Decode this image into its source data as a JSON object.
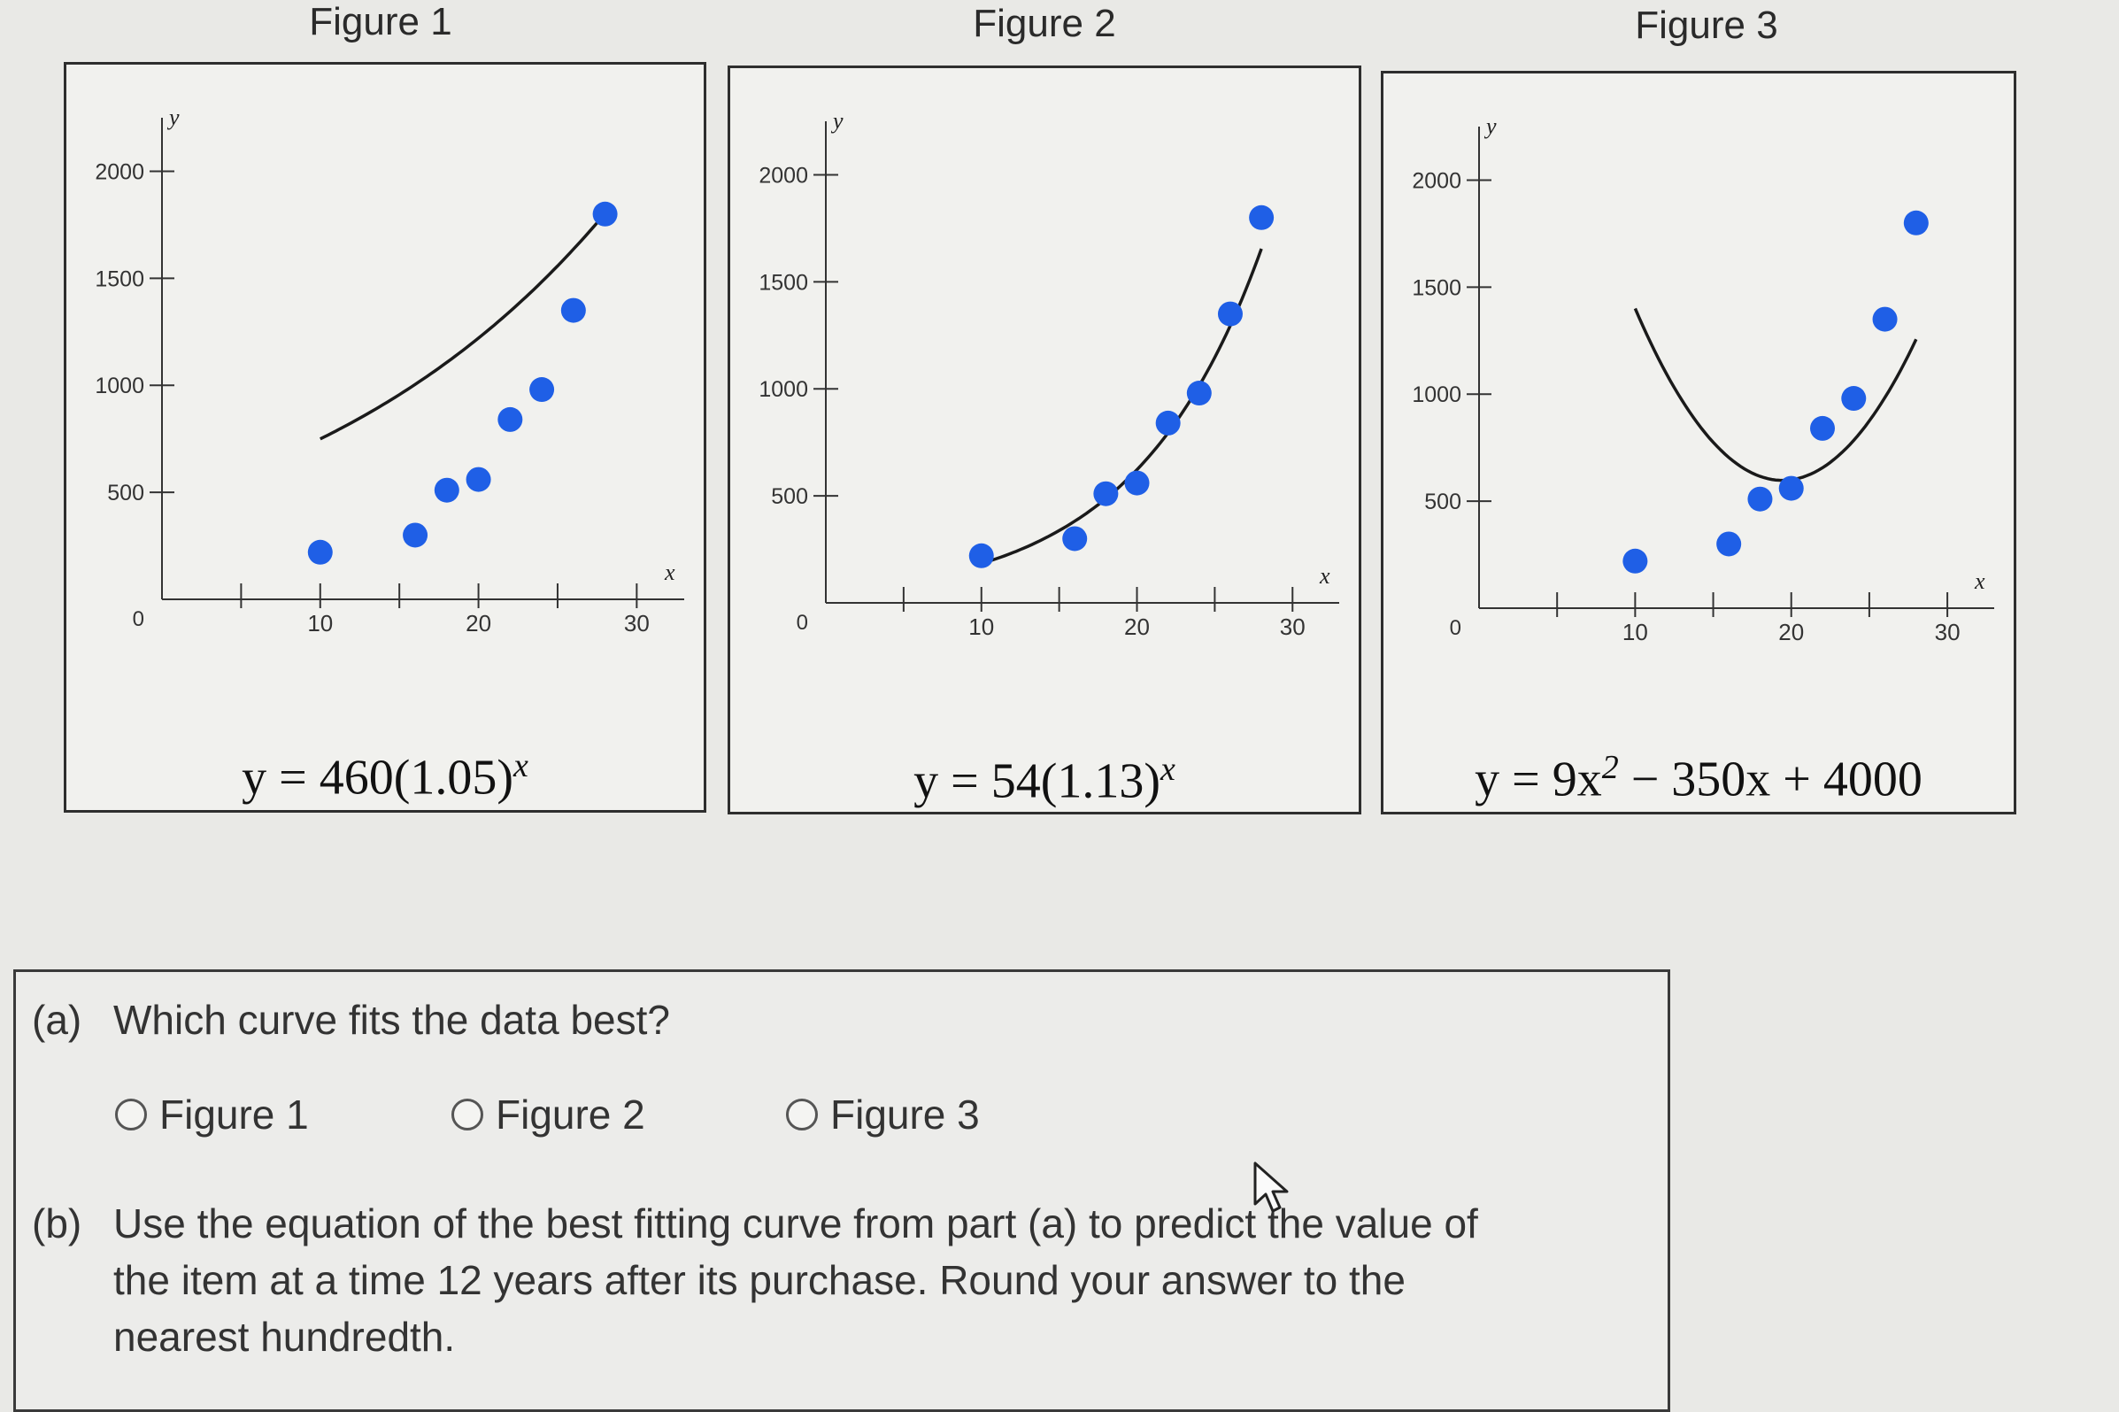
{
  "figures": [
    {
      "title": "Figure 1",
      "equation": {
        "base": "y = 460(1.05)",
        "exponent": "x"
      },
      "chart_data": {
        "type": "scatter",
        "xlabel": "x",
        "ylabel": "y",
        "xlim": [
          0,
          33
        ],
        "ylim": [
          0,
          2250
        ],
        "xticks": [
          10,
          20,
          30
        ],
        "yticks": [
          500,
          1000,
          1500,
          2000
        ],
        "origin_label": "0",
        "points": [
          [
            10,
            220
          ],
          [
            16,
            300
          ],
          [
            18,
            510
          ],
          [
            20,
            560
          ],
          [
            22,
            840
          ],
          [
            24,
            980
          ],
          [
            26,
            1350
          ],
          [
            28,
            1800
          ]
        ],
        "curve": {
          "formula": "460*1.05^x",
          "x_range": [
            10,
            28
          ]
        }
      }
    },
    {
      "title": "Figure 2",
      "equation": {
        "base": "y = 54(1.13)",
        "exponent": "x"
      },
      "chart_data": {
        "type": "scatter",
        "xlabel": "x",
        "ylabel": "y",
        "xlim": [
          0,
          33
        ],
        "ylim": [
          0,
          2250
        ],
        "xticks": [
          10,
          20,
          30
        ],
        "yticks": [
          500,
          1000,
          1500,
          2000
        ],
        "origin_label": "0",
        "points": [
          [
            10,
            220
          ],
          [
            16,
            300
          ],
          [
            18,
            510
          ],
          [
            20,
            560
          ],
          [
            22,
            840
          ],
          [
            24,
            980
          ],
          [
            26,
            1350
          ],
          [
            28,
            1800
          ]
        ],
        "curve": {
          "formula": "54*1.13^x",
          "x_range": [
            10,
            28
          ]
        }
      }
    },
    {
      "title": "Figure 3",
      "equation": {
        "base": "y = 9x",
        "exponent": "2",
        "tail": " − 350x + 4000"
      },
      "chart_data": {
        "type": "scatter",
        "xlabel": "x",
        "ylabel": "y",
        "xlim": [
          0,
          33
        ],
        "ylim": [
          0,
          2250
        ],
        "xticks": [
          10,
          20,
          30
        ],
        "yticks": [
          500,
          1000,
          1500,
          2000
        ],
        "origin_label": "0",
        "points": [
          [
            10,
            220
          ],
          [
            16,
            300
          ],
          [
            18,
            510
          ],
          [
            20,
            560
          ],
          [
            22,
            840
          ],
          [
            24,
            980
          ],
          [
            26,
            1350
          ],
          [
            28,
            1800
          ]
        ],
        "curve": {
          "formula": "9*x^2-350*x+4000",
          "x_range": [
            10,
            28
          ]
        }
      }
    }
  ],
  "question": {
    "part_a": {
      "tag": "(a)",
      "text": "Which curve fits the data best?"
    },
    "options": [
      "Figure 1",
      "Figure 2",
      "Figure 3"
    ],
    "part_b": {
      "tag": "(b)",
      "line1": "Use the equation of the best fitting curve from part (a) to predict the value of",
      "line2": "the item at a time 12 years after its purchase. Round your answer to the",
      "line3": "nearest hundredth."
    }
  },
  "colors": {
    "point": "#1f5fe6",
    "curve": "#1a1a1a",
    "axis": "#333333"
  }
}
